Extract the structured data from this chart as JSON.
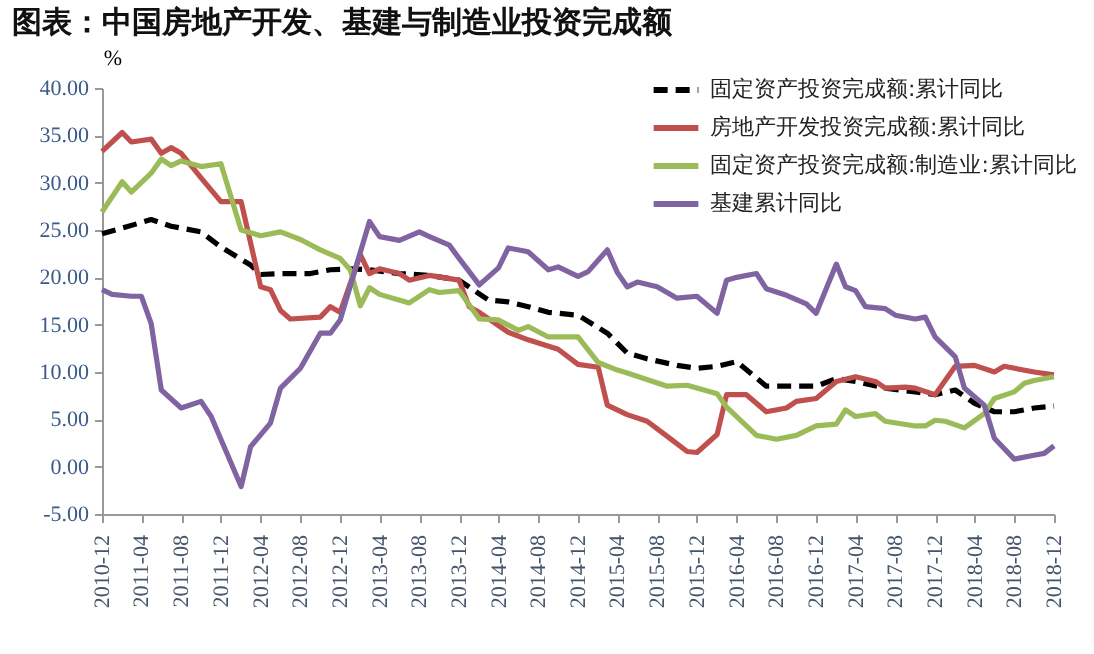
{
  "chart_data": {
    "type": "line",
    "title": "图表：中国房地产开发、基建与制造业投资完成额",
    "ylabel": "%",
    "xlim": [
      "2010-12",
      "2018-12"
    ],
    "xticks": [
      "2010-12",
      "2011-04",
      "2011-08",
      "2011-12",
      "2012-04",
      "2012-08",
      "2012-12",
      "2013-04",
      "2013-08",
      "2013-12",
      "2014-04",
      "2014-08",
      "2014-12",
      "2015-04",
      "2015-08",
      "2015-12",
      "2016-04",
      "2016-08",
      "2016-12",
      "2017-04",
      "2017-08",
      "2017-12",
      "2018-04",
      "2018-08",
      "2018-12"
    ],
    "ylim": [
      -5,
      40
    ],
    "yticks": [
      {
        "value": -5,
        "label": "-5.00"
      },
      {
        "value": 0,
        "label": "0.00"
      },
      {
        "value": 5,
        "label": "5.00"
      },
      {
        "value": 10,
        "label": "10.00"
      },
      {
        "value": 15,
        "label": "15.00"
      },
      {
        "value": 20,
        "label": "20.00"
      },
      {
        "value": 25,
        "label": "25.00"
      },
      {
        "value": 30,
        "label": "30.00"
      },
      {
        "value": 35,
        "label": "35.00"
      },
      {
        "value": 40,
        "label": "40.00"
      }
    ],
    "grid": false,
    "legend": "top right",
    "series": [
      {
        "name": "固定资产投资完成额:累计同比",
        "color": "#000000",
        "line_style": "dashed",
        "x": [
          "2010-12",
          "2011-02",
          "2011-05",
          "2011-07",
          "2011-10",
          "2011-12",
          "2012-03",
          "2012-04",
          "2012-06",
          "2012-09",
          "2012-11",
          "2013-01",
          "2013-03",
          "2013-06",
          "2013-09",
          "2013-12",
          "2014-03",
          "2014-05",
          "2014-07",
          "2014-09",
          "2014-12",
          "2015-03",
          "2015-05",
          "2015-07",
          "2015-10",
          "2015-12",
          "2016-02",
          "2016-04",
          "2016-07",
          "2016-10",
          "2016-12",
          "2017-02",
          "2017-04",
          "2017-07",
          "2017-10",
          "2017-12",
          "2018-02",
          "2018-04",
          "2018-06",
          "2018-08",
          "2018-10",
          "2018-12"
        ],
        "values": [
          24.6,
          25.2,
          26.1,
          25.4,
          24.8,
          23.2,
          21.3,
          20.3,
          20.4,
          20.4,
          20.8,
          20.9,
          20.8,
          20.4,
          20.2,
          19.7,
          17.6,
          17.4,
          16.9,
          16.3,
          16.0,
          14.1,
          12.0,
          11.4,
          10.7,
          10.4,
          10.6,
          11.1,
          8.5,
          8.5,
          8.5,
          9.3,
          9.0,
          8.3,
          7.9,
          7.6,
          8.1,
          6.7,
          5.8,
          5.8,
          6.2,
          6.4
        ]
      },
      {
        "name": "房地产开发投资完成额:累计同比",
        "color": "#c0504d",
        "line_style": "solid",
        "x": [
          "2010-12",
          "2011-02",
          "2011-03",
          "2011-05",
          "2011-06",
          "2011-07",
          "2011-08",
          "2011-10",
          "2011-12",
          "2012-02",
          "2012-04",
          "2012-05",
          "2012-06",
          "2012-07",
          "2012-10",
          "2012-11",
          "2012-12",
          "2013-02",
          "2013-03",
          "2013-04",
          "2013-06",
          "2013-07",
          "2013-09",
          "2013-12",
          "2014-01",
          "2014-02",
          "2014-05",
          "2014-07",
          "2014-10",
          "2014-12",
          "2015-02",
          "2015-03",
          "2015-05",
          "2015-07",
          "2015-09",
          "2015-11",
          "2015-12",
          "2016-02",
          "2016-03",
          "2016-05",
          "2016-07",
          "2016-09",
          "2016-10",
          "2016-12",
          "2017-02",
          "2017-04",
          "2017-06",
          "2017-07",
          "2017-09",
          "2017-10",
          "2017-12",
          "2018-02",
          "2018-04",
          "2018-06",
          "2018-07",
          "2018-10",
          "2018-12"
        ],
        "values": [
          33.3,
          35.3,
          34.3,
          34.6,
          33.1,
          33.7,
          33.1,
          30.5,
          28.0,
          28.0,
          19.0,
          18.7,
          16.5,
          15.6,
          15.8,
          16.9,
          16.3,
          22.4,
          20.4,
          20.9,
          20.4,
          19.7,
          20.2,
          19.7,
          16.9,
          16.3,
          14.2,
          13.4,
          12.4,
          10.8,
          10.5,
          6.5,
          5.5,
          4.8,
          3.2,
          1.6,
          1.5,
          3.4,
          7.6,
          7.6,
          5.8,
          6.2,
          6.9,
          7.2,
          9.0,
          9.5,
          9.0,
          8.3,
          8.4,
          8.3,
          7.6,
          10.6,
          10.7,
          10.0,
          10.6,
          10.0,
          9.7
        ]
      },
      {
        "name": "固定资产投资完成额:制造业:累计同比",
        "color": "#9bbb59",
        "line_style": "solid",
        "x": [
          "2010-12",
          "2011-02",
          "2011-03",
          "2011-05",
          "2011-06",
          "2011-07",
          "2011-08",
          "2011-10",
          "2011-12",
          "2012-02",
          "2012-04",
          "2012-06",
          "2012-08",
          "2012-10",
          "2012-12",
          "2013-01",
          "2013-02",
          "2013-03",
          "2013-04",
          "2013-07",
          "2013-09",
          "2013-10",
          "2013-12",
          "2014-02",
          "2014-04",
          "2014-06",
          "2014-07",
          "2014-09",
          "2014-12",
          "2015-02",
          "2015-04",
          "2015-05",
          "2015-09",
          "2015-11",
          "2016-02",
          "2016-03",
          "2016-06",
          "2016-08",
          "2016-10",
          "2016-12",
          "2017-02",
          "2017-03",
          "2017-04",
          "2017-06",
          "2017-07",
          "2017-10",
          "2017-11",
          "2017-12",
          "2018-01",
          "2018-03",
          "2018-05",
          "2018-06",
          "2018-08",
          "2018-09",
          "2018-10",
          "2018-12"
        ],
        "values": [
          26.9,
          30.1,
          29.0,
          31.0,
          32.5,
          31.8,
          32.3,
          31.7,
          32.0,
          25.0,
          24.4,
          24.8,
          24.0,
          22.9,
          22.0,
          20.8,
          17.0,
          18.9,
          18.2,
          17.3,
          18.7,
          18.4,
          18.6,
          15.6,
          15.5,
          14.4,
          14.8,
          13.7,
          13.7,
          11.0,
          10.2,
          9.9,
          8.5,
          8.6,
          7.7,
          6.3,
          3.3,
          2.9,
          3.3,
          4.3,
          4.5,
          6.0,
          5.3,
          5.6,
          4.8,
          4.3,
          4.3,
          4.9,
          4.8,
          4.1,
          5.6,
          7.2,
          7.9,
          8.8,
          9.1,
          9.5
        ]
      },
      {
        "name": "基建累计同比",
        "color": "#8064a2",
        "line_style": "solid",
        "x": [
          "2010-12",
          "2011-01",
          "2011-03",
          "2011-04",
          "2011-05",
          "2011-06",
          "2011-08",
          "2011-10",
          "2011-11",
          "2012-02",
          "2012-03",
          "2012-05",
          "2012-06",
          "2012-08",
          "2012-10",
          "2012-11",
          "2012-12",
          "2013-03",
          "2013-04",
          "2013-06",
          "2013-08",
          "2013-09",
          "2013-11",
          "2013-12",
          "2014-02",
          "2014-04",
          "2014-05",
          "2014-07",
          "2014-09",
          "2014-10",
          "2014-12",
          "2015-01",
          "2015-03",
          "2015-04",
          "2015-05",
          "2015-06",
          "2015-08",
          "2015-10",
          "2015-12",
          "2016-02",
          "2016-03",
          "2016-04",
          "2016-06",
          "2016-07",
          "2016-09",
          "2016-11",
          "2016-12",
          "2017-02",
          "2017-03",
          "2017-04",
          "2017-05",
          "2017-07",
          "2017-08",
          "2017-10",
          "2017-11",
          "2017-12",
          "2018-02",
          "2018-03",
          "2018-05",
          "2018-06",
          "2018-08",
          "2018-10",
          "2018-11",
          "2018-12"
        ],
        "values": [
          18.7,
          18.2,
          18.0,
          18.0,
          15.1,
          8.1,
          6.2,
          6.9,
          5.3,
          -2.1,
          2.1,
          4.6,
          8.3,
          10.4,
          14.1,
          14.1,
          15.5,
          25.9,
          24.3,
          23.9,
          24.8,
          24.3,
          23.4,
          22.0,
          19.2,
          21.0,
          23.1,
          22.7,
          20.8,
          21.1,
          20.1,
          20.6,
          22.9,
          20.5,
          19.0,
          19.5,
          19.0,
          17.8,
          18.0,
          16.2,
          19.7,
          20.0,
          20.4,
          18.8,
          18.1,
          17.2,
          16.2,
          21.4,
          19.0,
          18.6,
          16.9,
          16.7,
          16.0,
          15.6,
          15.8,
          13.7,
          11.6,
          8.3,
          6.5,
          3.0,
          0.8,
          1.2,
          1.4,
          2.2
        ]
      }
    ]
  }
}
